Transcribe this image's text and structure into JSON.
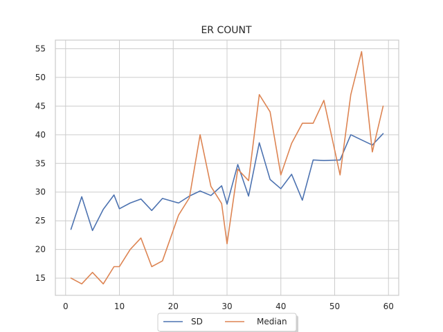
{
  "chart_data": {
    "type": "line",
    "title": "ER COUNT",
    "xlabel": "",
    "ylabel": "",
    "xlim": [
      -1.9,
      61.9
    ],
    "ylim": [
      12.0,
      56.5
    ],
    "xticks": [
      0,
      10,
      20,
      30,
      40,
      50,
      60
    ],
    "yticks": [
      15,
      20,
      25,
      30,
      35,
      40,
      45,
      50,
      55
    ],
    "grid": true,
    "legend_position": "bottom-center",
    "series": [
      {
        "name": "SD",
        "color": "#4c72b0",
        "x": [
          1,
          3,
          5,
          7,
          9,
          10,
          12,
          14,
          16,
          18,
          21,
          23,
          25,
          27,
          29,
          30,
          32,
          34,
          36,
          38,
          40,
          42,
          44,
          46,
          48,
          51,
          53,
          55,
          57,
          59
        ],
        "y": [
          23.5,
          29.2,
          23.3,
          27.0,
          29.5,
          27.1,
          28.1,
          28.8,
          26.8,
          28.9,
          28.1,
          29.3,
          30.2,
          29.4,
          31.1,
          27.9,
          34.8,
          29.3,
          38.6,
          32.2,
          30.6,
          33.1,
          28.6,
          35.6,
          35.5,
          35.6,
          40.0,
          39.1,
          38.2,
          40.2
        ]
      },
      {
        "name": "Median",
        "color": "#dd8452",
        "x": [
          1,
          3,
          5,
          7,
          9,
          10,
          12,
          14,
          16,
          18,
          21,
          23,
          25,
          27,
          29,
          30,
          32,
          34,
          36,
          38,
          40,
          42,
          44,
          46,
          48,
          51,
          53,
          55,
          57,
          59
        ],
        "y": [
          15,
          14,
          16,
          14,
          17,
          17,
          20,
          22,
          17,
          18,
          26,
          29,
          40,
          31,
          28,
          21,
          34,
          32,
          47,
          44,
          33,
          38.5,
          42,
          42,
          46,
          33,
          47,
          54.5,
          37,
          45
        ]
      }
    ]
  }
}
